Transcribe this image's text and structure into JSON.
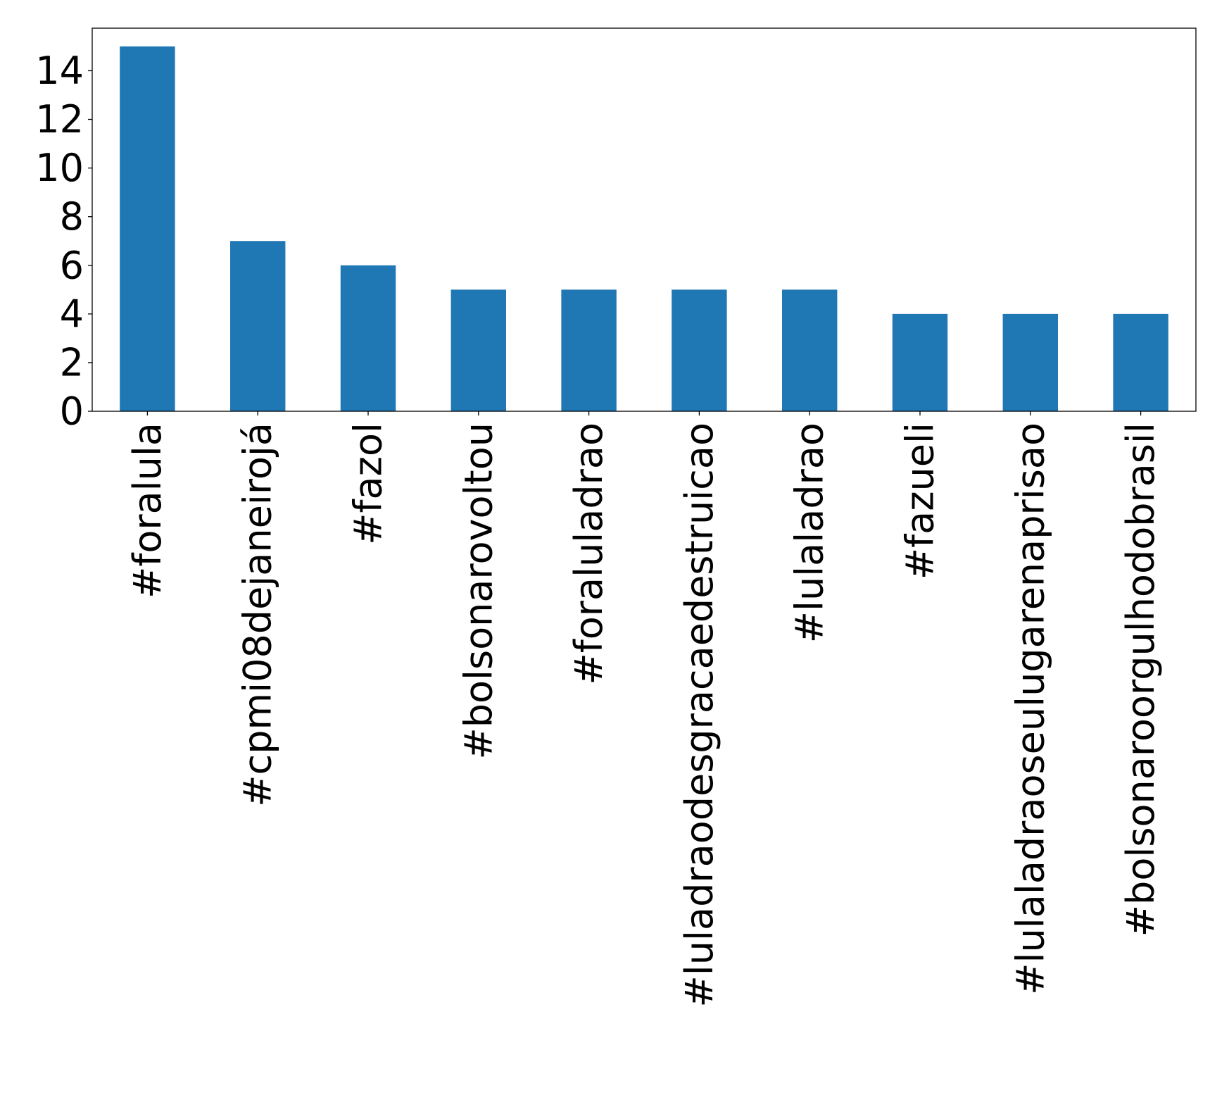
{
  "chart_data": {
    "type": "bar",
    "title": "",
    "xlabel": "",
    "ylabel": "",
    "categories": [
      "#foralula",
      "#cpmi08dejaneirojá",
      "#fazol",
      "#bolsonarovoltou",
      "#foraluladrao",
      "#luladraodesgracaedestruicao",
      "#lulaladrao",
      "#fazueli",
      "#lulaladraoseulugarenaprisao",
      "#bolsonaroorgulhodobrasil"
    ],
    "values": [
      15,
      7,
      6,
      5,
      5,
      5,
      5,
      4,
      4,
      4
    ],
    "yticks": [
      "0",
      "2",
      "4",
      "6",
      "8",
      "10",
      "12",
      "14"
    ],
    "ylim": [
      0,
      15.75
    ],
    "grid": false,
    "legend": "none",
    "colors": {
      "bar": "#1f77b4",
      "axes": "#000000",
      "background": "#ffffff"
    }
  }
}
